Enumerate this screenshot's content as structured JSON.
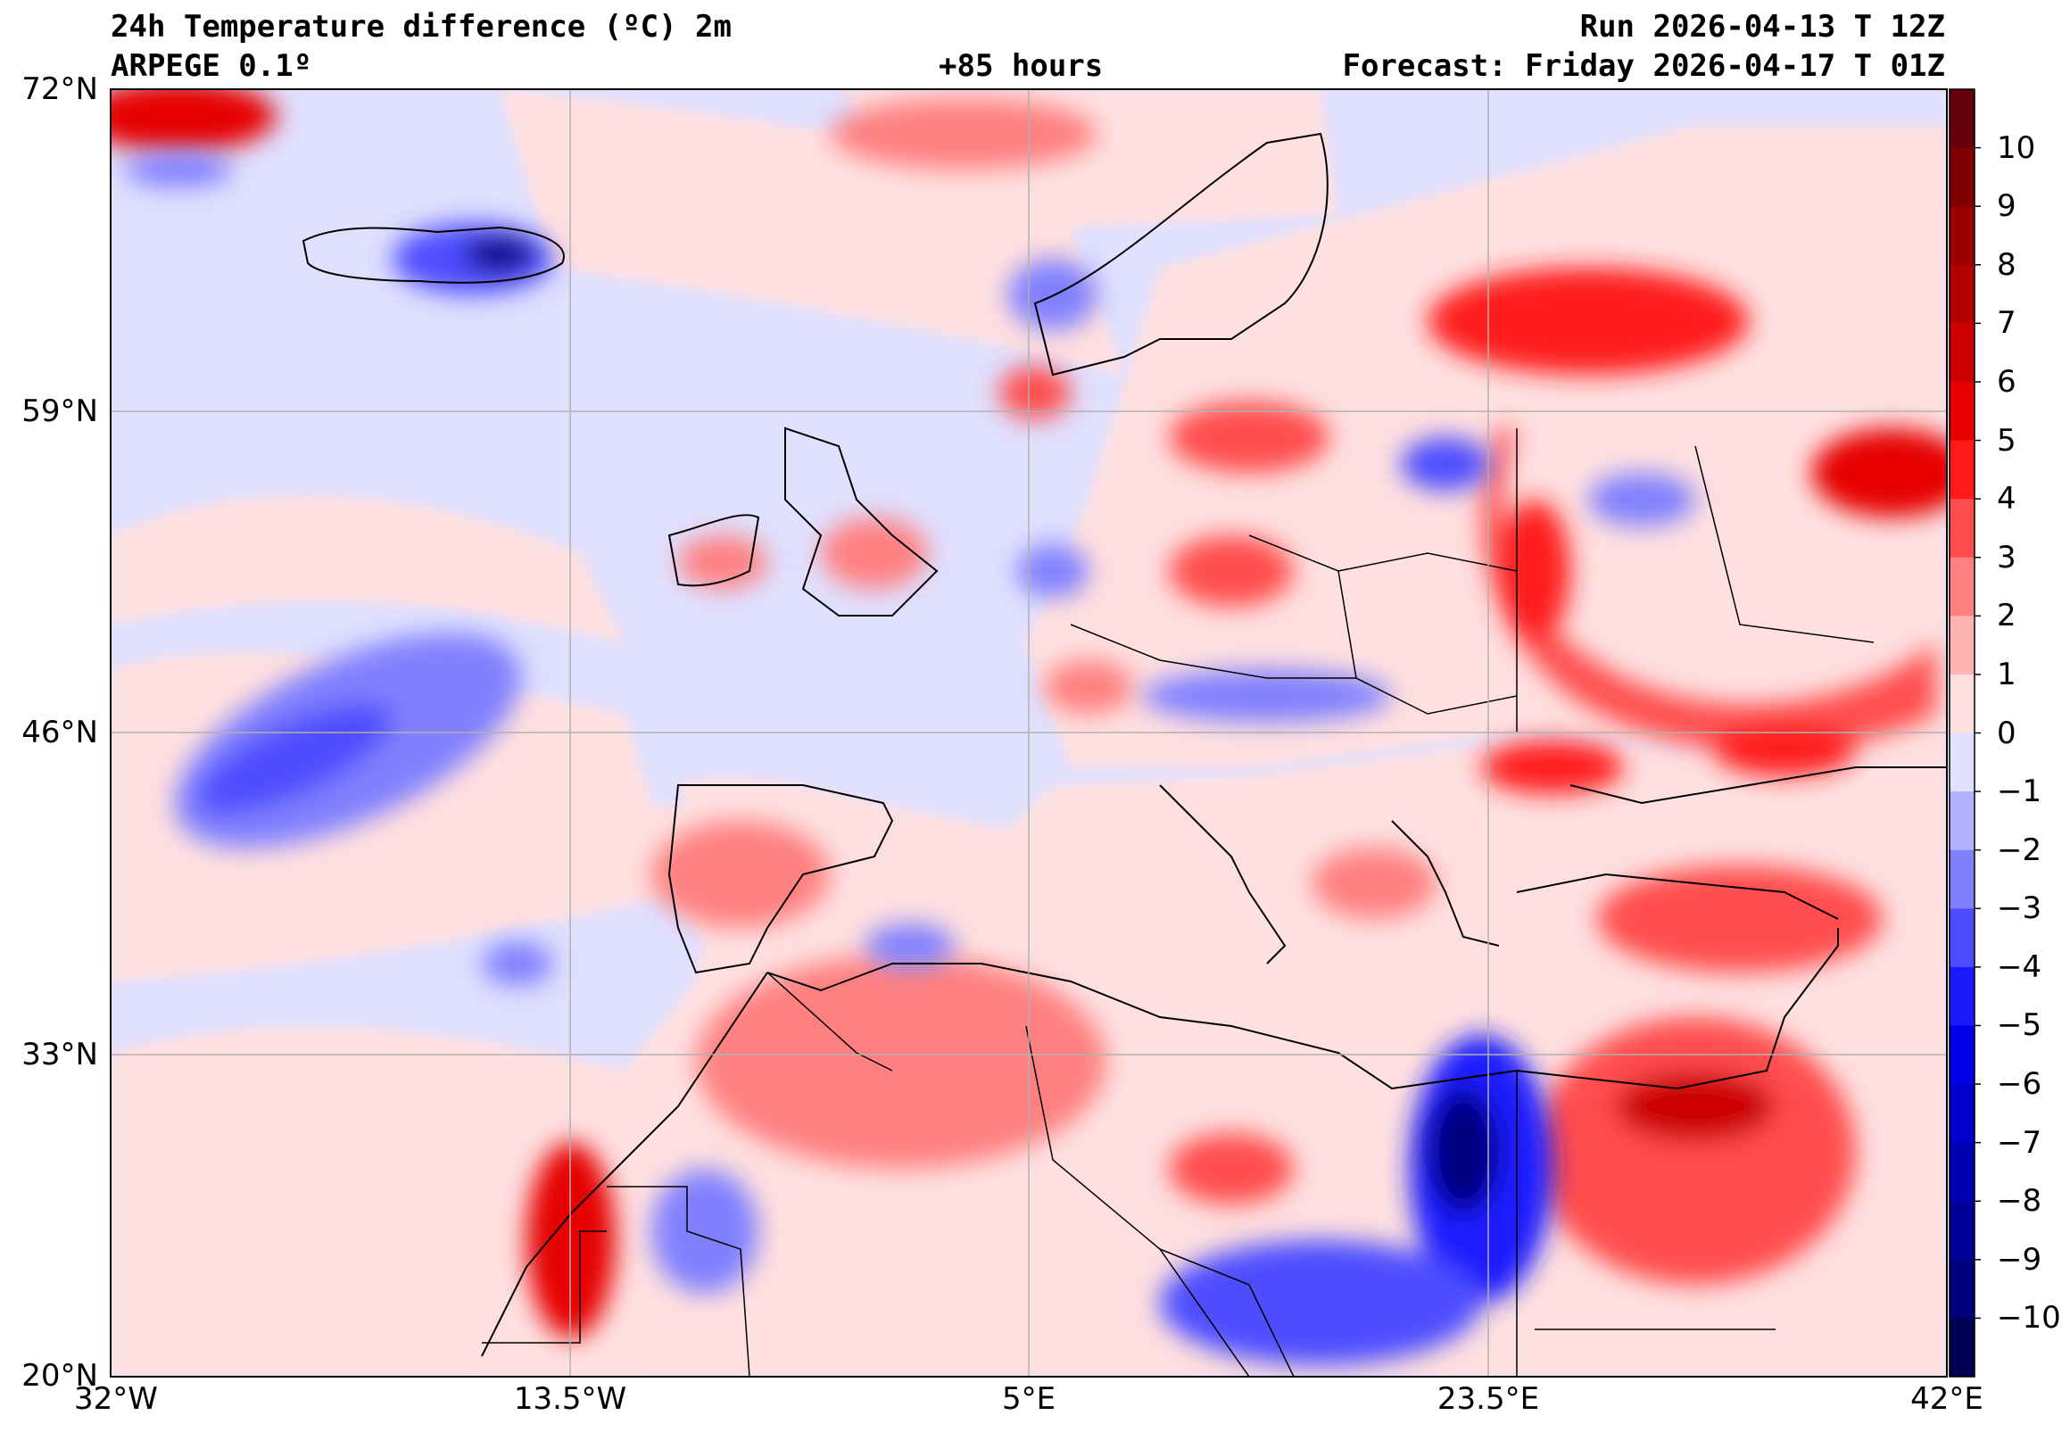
{
  "header": {
    "title": "24h Temperature difference (ºC) 2m",
    "model": "ARPEGE 0.1º",
    "lead": "+85 hours",
    "run": "Run 2026-04-13 T 12Z",
    "forecast": "Forecast: Friday 2026-04-17 T 01Z"
  },
  "map": {
    "lat_ticks": [
      "72°N",
      "59°N",
      "46°N",
      "33°N",
      "20°N"
    ],
    "lon_ticks": [
      "32°W",
      "13.5°W",
      "5°E",
      "23.5°E",
      "42°E"
    ],
    "extent": {
      "lon": [
        -32,
        42
      ],
      "lat": [
        20,
        72
      ]
    }
  },
  "colorbar": {
    "labels": [
      "10",
      "9",
      "8",
      "7",
      "6",
      "5",
      "4",
      "3",
      "2",
      "1",
      "0",
      "−1",
      "−2",
      "−3",
      "−4",
      "−5",
      "−6",
      "−7",
      "−8",
      "−9",
      "−10"
    ],
    "colors": [
      "#67000d",
      "#7f0000",
      "#990000",
      "#b30000",
      "#cc0000",
      "#e60000",
      "#ff1a1a",
      "#ff4d4d",
      "#ff8080",
      "#ffb3b3",
      "#ffe0e0",
      "#e0e0ff",
      "#b3b3ff",
      "#8080ff",
      "#4d4dff",
      "#1a1aff",
      "#0000e6",
      "#0000cc",
      "#0000b3",
      "#000099",
      "#00007f",
      "#000055"
    ]
  },
  "colors": {
    "warm": "#ff4d4d",
    "cold": "#4d4dff",
    "neutral_warm": "#ffe0e0",
    "neutral_cold": "#e0e0ff"
  }
}
